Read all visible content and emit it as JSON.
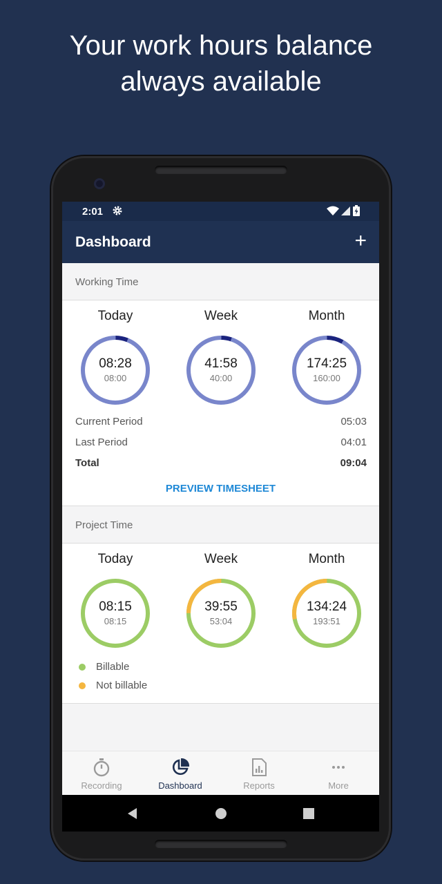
{
  "headline": {
    "line1": "Your work hours balance",
    "line2": "always available"
  },
  "status_bar": {
    "time": "2:01",
    "icons": [
      "gear-icon",
      "wifi-icon",
      "signal-icon",
      "battery-icon"
    ]
  },
  "app_bar": {
    "title": "Dashboard",
    "add_label": "+"
  },
  "working_time": {
    "header": "Working Time",
    "rings": [
      {
        "label": "Today",
        "value": "08:28",
        "target": "08:00",
        "overtime_fraction": 0.06
      },
      {
        "label": "Week",
        "value": "41:58",
        "target": "40:00",
        "overtime_fraction": 0.05
      },
      {
        "label": "Month",
        "value": "174:25",
        "target": "160:00",
        "overtime_fraction": 0.08
      }
    ],
    "periods": [
      {
        "label": "Current Period",
        "value": "05:03"
      },
      {
        "label": "Last Period",
        "value": "04:01"
      },
      {
        "label": "Total",
        "value": "09:04"
      }
    ],
    "preview_label": "PREVIEW TIMESHEET"
  },
  "project_time": {
    "header": "Project Time",
    "rings": [
      {
        "label": "Today",
        "value": "08:15",
        "target": "08:15",
        "not_billable_fraction": 0.0
      },
      {
        "label": "Week",
        "value": "39:55",
        "target": "53:04",
        "not_billable_fraction": 0.25
      },
      {
        "label": "Month",
        "value": "134:24",
        "target": "193:51",
        "not_billable_fraction": 0.28
      }
    ],
    "legend": [
      {
        "label": "Billable",
        "color": "#9ccc65"
      },
      {
        "label": "Not billable",
        "color": "#f4b63f"
      }
    ]
  },
  "bottom_nav": {
    "items": [
      {
        "label": "Recording",
        "icon": "stopwatch-icon"
      },
      {
        "label": "Dashboard",
        "icon": "pie-chart-icon"
      },
      {
        "label": "Reports",
        "icon": "report-icon"
      },
      {
        "label": "More",
        "icon": "more-dots-icon"
      }
    ],
    "active_index": 1
  },
  "colors": {
    "background": "#213150",
    "app_bar": "#1f3152",
    "working_ring": "#7986cb",
    "working_overtime": "#1a237e",
    "billable": "#9ccc65",
    "not_billable": "#f4b63f",
    "link": "#1e88d6"
  }
}
